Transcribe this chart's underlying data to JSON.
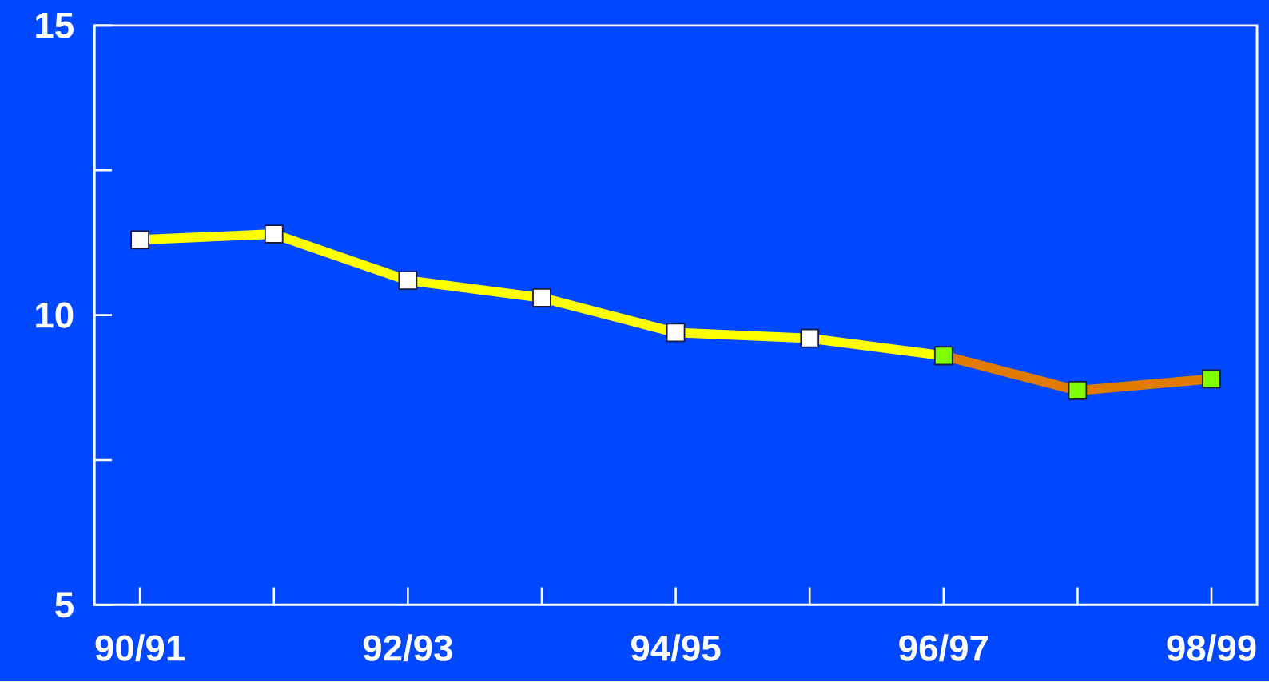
{
  "chart_data": {
    "type": "line",
    "categories": [
      "90/91",
      null,
      "92/93",
      null,
      "94/95",
      null,
      "96/97",
      null,
      "98/99"
    ],
    "ylim": [
      5,
      15
    ],
    "yticks": [
      5,
      {
        "value": 7.5,
        "label": null
      },
      10,
      {
        "value": 12.5,
        "label": null
      },
      15
    ],
    "marker": "square",
    "line_style": "solid",
    "grid": false,
    "legend": false,
    "series": [
      {
        "color": "#ffff00",
        "values": [
          11.3,
          11.4,
          10.6,
          10.3,
          9.7,
          9.6,
          9.3,
          null,
          null
        ],
        "colors": [
          "#ffffff",
          "#ffffff",
          "#ffffff",
          "#ffffff",
          "#ffffff",
          "#ffffff",
          "#80ff00",
          null,
          null
        ]
      },
      {
        "color": "#e07b00",
        "values": [
          null,
          null,
          null,
          null,
          null,
          null,
          9.3,
          8.7,
          8.9
        ],
        "colors": [
          null,
          null,
          null,
          null,
          null,
          null,
          "#80ff00",
          "#80ff00",
          "#80ff00"
        ]
      }
    ]
  }
}
